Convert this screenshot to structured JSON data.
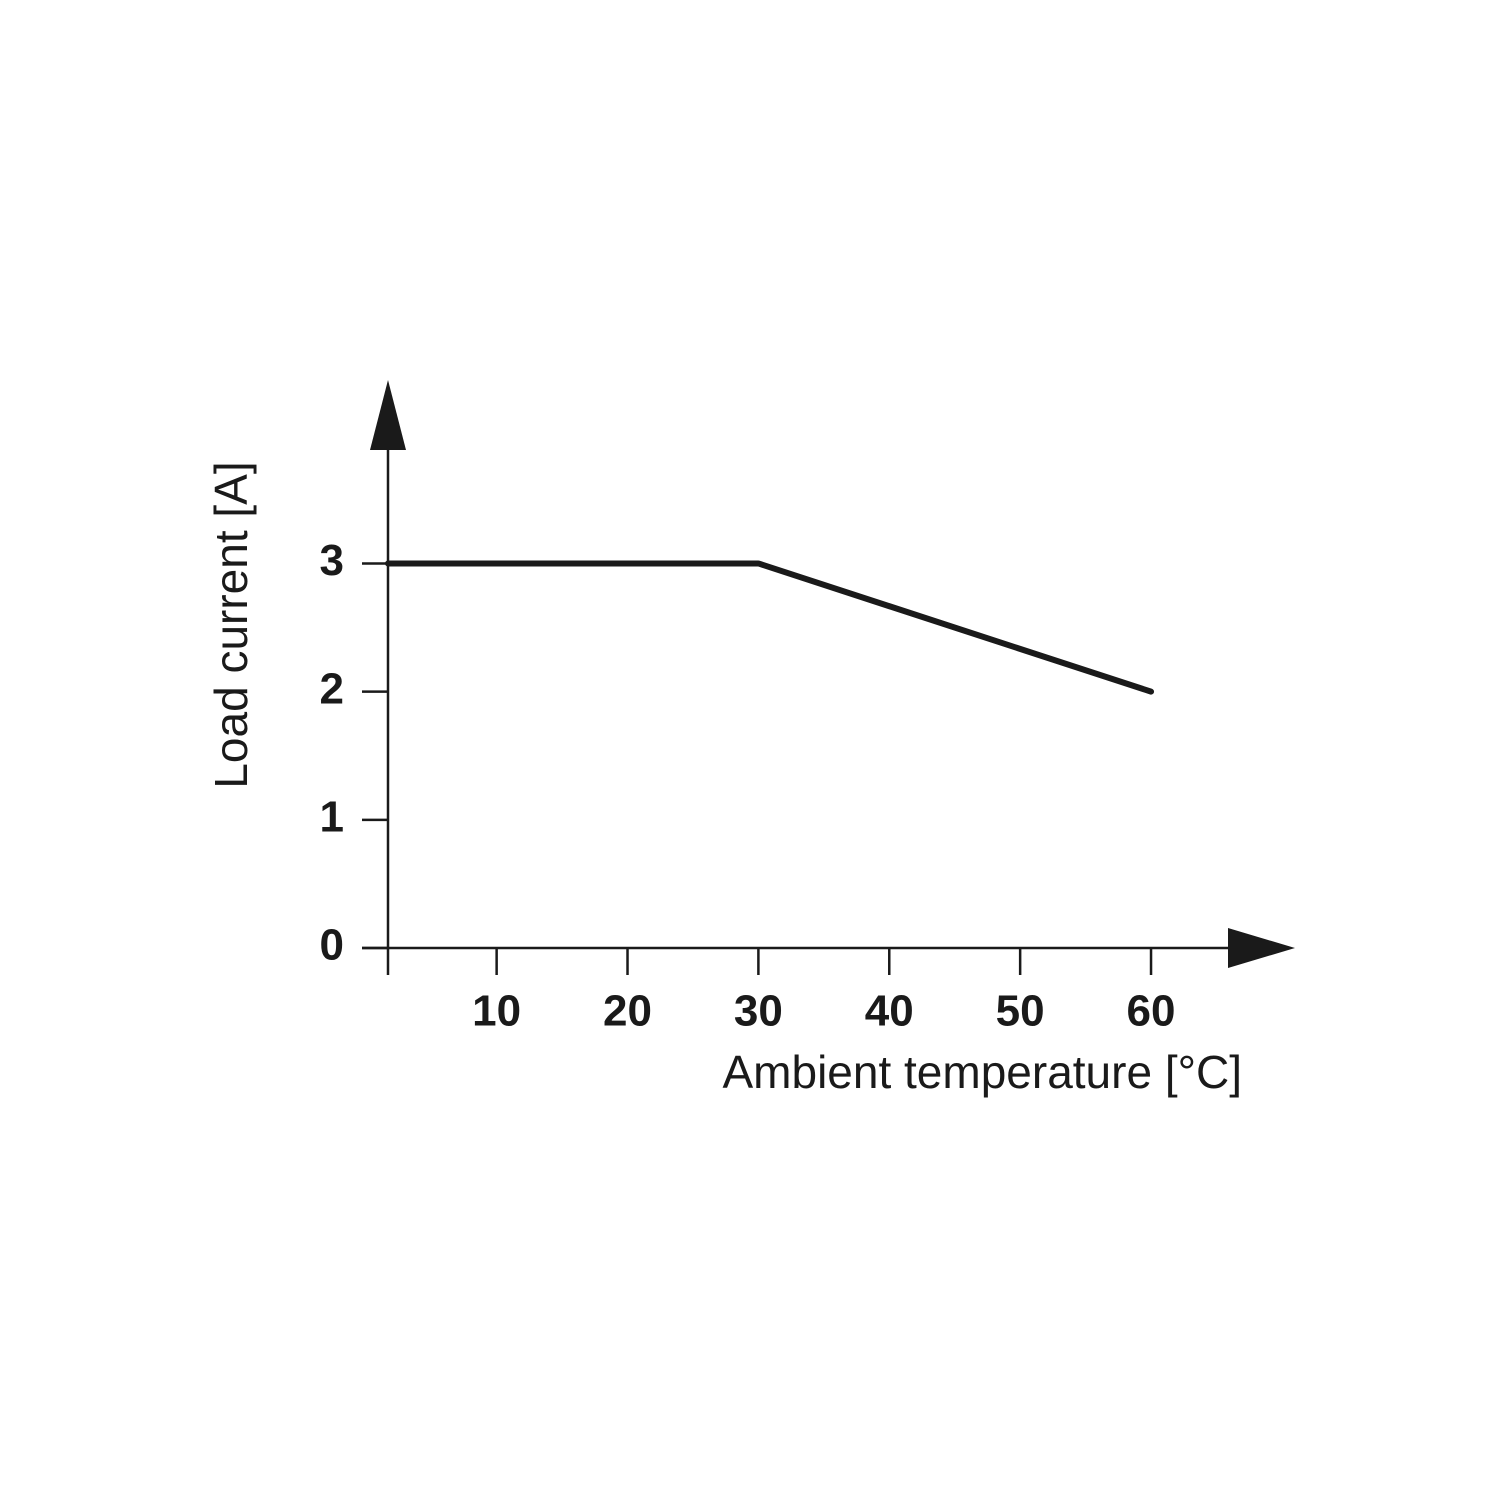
{
  "chart_data": {
    "type": "line",
    "x_label": "Ambient temperature [°C]",
    "y_label": "Load current [A]",
    "x": [
      1.7,
      30,
      60
    ],
    "series": [
      {
        "color": "#1a1a1a",
        "values": [
          3,
          3,
          2
        ]
      }
    ],
    "xlim": [
      1.7,
      71
    ],
    "ylim": [
      0,
      4.4
    ],
    "xticks": [
      10,
      20,
      30,
      40,
      50,
      60
    ],
    "yticks": [
      0,
      1,
      2,
      3
    ]
  }
}
